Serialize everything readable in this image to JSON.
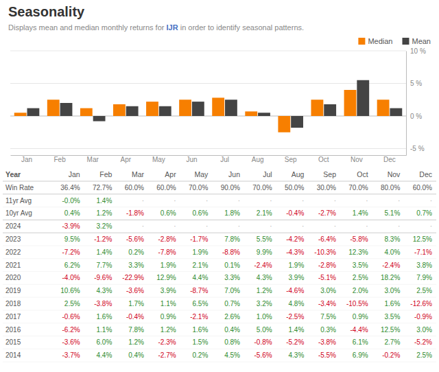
{
  "chart_data": {
    "type": "bar",
    "title": "Seasonality",
    "subtitle": [
      "Displays mean and median monthly returns for ",
      "IJR",
      " in order to identify seasonal patterns."
    ],
    "categories": [
      "Jan",
      "Feb",
      "Mar",
      "Apr",
      "May",
      "Jun",
      "Jul",
      "Aug",
      "Sep",
      "Oct",
      "Nov",
      "Dec"
    ],
    "series": [
      {
        "name": "Median",
        "color": "#f77f00",
        "values": [
          0.5,
          2.5,
          1.2,
          1.8,
          2.2,
          2.5,
          2.8,
          0.7,
          -2.5,
          2.5,
          4.0,
          2.5
        ]
      },
      {
        "name": "Mean",
        "color": "#444444",
        "values": [
          1.2,
          2.0,
          -0.8,
          1.5,
          1.5,
          2.2,
          2.5,
          0.5,
          -1.8,
          1.8,
          5.5,
          1.2
        ]
      }
    ],
    "ylim": [
      -6,
      10
    ],
    "yticks": [
      {
        "value": -5,
        "label": "-5 %"
      },
      {
        "value": 0,
        "label": "0 %"
      },
      {
        "value": 5,
        "label": "5 %"
      },
      {
        "value": 10,
        "label": "10 %"
      }
    ],
    "grid": true,
    "legend": "top-right",
    "table": {
      "headers": [
        "Year",
        "Jan",
        "Feb",
        "Mar",
        "Apr",
        "May",
        "Jun",
        "Jul",
        "Aug",
        "Sep",
        "Oct",
        "Nov",
        "Dec"
      ],
      "rows": [
        [
          "Win Rate",
          "36.4%",
          "72.7%",
          "60.0%",
          "60.0%",
          "70.0%",
          "90.0%",
          "70.0%",
          "50.0%",
          "30.0%",
          "70.0%",
          "80.0%",
          "60.0%"
        ],
        [
          "11yr Avg",
          "-0.0%",
          "1.4%",
          "·",
          "·",
          "·",
          "·",
          "·",
          "·",
          "·",
          "·",
          "·",
          "·"
        ],
        [
          "10yr Avg",
          "0.4%",
          "1.2%",
          "-1.8%",
          "0.6%",
          "0.6%",
          "1.8%",
          "2.1%",
          "-0.4%",
          "-2.7%",
          "1.4%",
          "5.1%",
          "0.7%"
        ],
        [
          "2024",
          "-3.9%",
          "3.2%",
          "·",
          "·",
          "·",
          "·",
          "·",
          "·",
          "·",
          "·",
          "·",
          "·"
        ],
        [
          "2023",
          "9.5%",
          "-1.2%",
          "-5.6%",
          "-2.8%",
          "-1.7%",
          "7.8%",
          "5.5%",
          "-4.2%",
          "-6.4%",
          "-5.8%",
          "8.3%",
          "12.5%"
        ],
        [
          "2022",
          "-7.2%",
          "1.4%",
          "0.2%",
          "-7.8%",
          "1.9%",
          "-8.8%",
          "9.9%",
          "-4.3%",
          "-10.3%",
          "12.3%",
          "4.0%",
          "-7.1%"
        ],
        [
          "2021",
          "6.2%",
          "7.7%",
          "3.3%",
          "1.9%",
          "2.1%",
          "0.1%",
          "-2.4%",
          "1.9%",
          "-2.8%",
          "3.5%",
          "-2.4%",
          "3.8%"
        ],
        [
          "2020",
          "-4.0%",
          "-9.6%",
          "-22.9%",
          "12.9%",
          "4.4%",
          "3.3%",
          "4.3%",
          "3.9%",
          "-5.1%",
          "2.5%",
          "18.2%",
          "7.9%"
        ],
        [
          "2019",
          "10.6%",
          "4.3%",
          "-3.6%",
          "3.9%",
          "-8.7%",
          "7.0%",
          "1.2%",
          "-4.6%",
          "3.0%",
          "2.0%",
          "3.0%",
          "2.5%"
        ],
        [
          "2018",
          "2.5%",
          "-3.8%",
          "1.7%",
          "1.1%",
          "6.5%",
          "0.7%",
          "3.2%",
          "4.8%",
          "-3.4%",
          "-10.5%",
          "1.6%",
          "-12.6%"
        ],
        [
          "2017",
          "-0.6%",
          "1.6%",
          "-0.4%",
          "0.9%",
          "-2.1%",
          "2.6%",
          "1.0%",
          "-2.5%",
          "7.5%",
          "0.9%",
          "3.5%",
          "-0.9%"
        ],
        [
          "2016",
          "-6.2%",
          "1.1%",
          "7.8%",
          "1.2%",
          "1.6%",
          "0.4%",
          "5.0%",
          "1.4%",
          "0.3%",
          "-4.4%",
          "12.5%",
          "3.0%"
        ],
        [
          "2015",
          "-3.6%",
          "6.0%",
          "1.2%",
          "-2.3%",
          "1.5%",
          "0.8%",
          "-0.8%",
          "-5.2%",
          "-3.8%",
          "6.1%",
          "2.7%",
          "-5.2%"
        ],
        [
          "2014",
          "-3.7%",
          "4.4%",
          "0.4%",
          "-2.7%",
          "0.2%",
          "4.5%",
          "-5.6%",
          "4.3%",
          "-5.5%",
          "6.9%",
          "-0.2%",
          "2.5%"
        ]
      ]
    }
  }
}
